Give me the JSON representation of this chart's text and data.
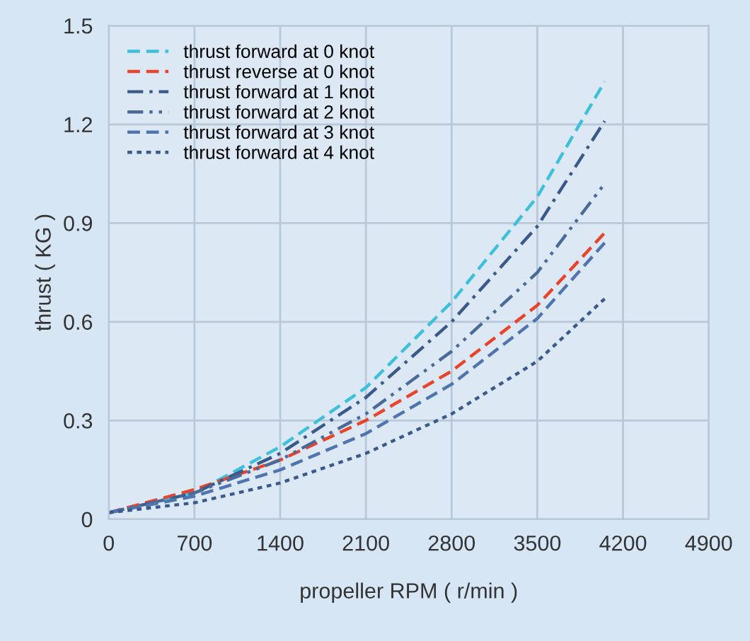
{
  "chart_data": {
    "type": "line",
    "xlabel": "propeller RPM ( r/min )",
    "ylabel": "thrust ( KG )",
    "x": [
      0,
      700,
      1400,
      2100,
      2800,
      3500,
      4050
    ],
    "series": [
      {
        "name": "thrust forward at 0 knot",
        "color": "#3ec0dc",
        "line_style": "dashed",
        "values": [
          0.02,
          0.08,
          0.22,
          0.4,
          0.66,
          0.98,
          1.33
        ]
      },
      {
        "name": "thrust reverse at 0 knot",
        "color": "#e8442c",
        "line_style": "dashed",
        "values": [
          0.02,
          0.09,
          0.18,
          0.3,
          0.45,
          0.65,
          0.87
        ]
      },
      {
        "name": "thrust forward at 1 knot",
        "color": "#3a5a8c",
        "line_style": "dashdot",
        "values": [
          0.02,
          0.08,
          0.2,
          0.37,
          0.6,
          0.89,
          1.21
        ]
      },
      {
        "name": "thrust forward at 2 knot",
        "color": "#4a6a9a",
        "line_style": "dashdotdot",
        "values": [
          0.02,
          0.08,
          0.18,
          0.32,
          0.51,
          0.75,
          1.02
        ]
      },
      {
        "name": "thrust forward at 3 knot",
        "color": "#4f74b0",
        "line_style": "dashed",
        "values": [
          0.02,
          0.07,
          0.15,
          0.26,
          0.41,
          0.61,
          0.84
        ]
      },
      {
        "name": "thrust forward at 4 knot",
        "color": "#3a5a8c",
        "line_style": "dotted",
        "values": [
          0.02,
          0.05,
          0.11,
          0.2,
          0.32,
          0.48,
          0.67
        ]
      }
    ],
    "xlim": [
      0,
      4900
    ],
    "xticks": [
      0,
      700,
      1400,
      2100,
      2800,
      3500,
      4200,
      4900
    ],
    "ylim": [
      0,
      1.5
    ],
    "yticks": [
      {
        "value": 0,
        "label": "0"
      },
      0.3,
      0.6,
      0.9,
      1.2,
      1.5
    ],
    "grid": true,
    "legend": "top left",
    "marker": "none"
  }
}
